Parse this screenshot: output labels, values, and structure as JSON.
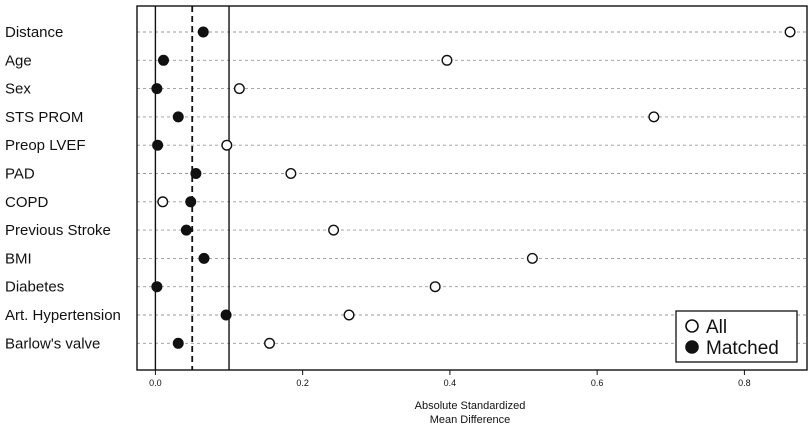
{
  "chart_data": {
    "type": "scatter",
    "title": "",
    "xlabel": [
      "Absolute Standardized",
      "Mean Difference"
    ],
    "ylabel": "",
    "xlim": [
      -0.025,
      0.885
    ],
    "x_ticks": [
      0.0,
      0.2,
      0.4,
      0.6,
      0.8
    ],
    "x_tick_labels": [
      "0.0",
      "0.2",
      "0.4",
      "0.6",
      "0.8"
    ],
    "reference_lines": [
      {
        "x": 0.0,
        "style": "solid"
      },
      {
        "x": 0.05,
        "style": "dashed"
      },
      {
        "x": 0.1,
        "style": "solid"
      }
    ],
    "grid": "horizontal dotted",
    "legend_position": "bottom-right",
    "categories": [
      "Distance",
      "Age",
      "Sex",
      "STS PROM",
      "Preop LVEF",
      "PAD",
      "COPD",
      "Previous Stroke",
      "BMI",
      "Diabetes",
      "Art. Hypertension",
      "Barlow's valve"
    ],
    "series": [
      {
        "name": "All",
        "marker": "open-circle",
        "values": [
          0.862,
          0.396,
          0.114,
          0.677,
          0.097,
          0.184,
          0.01,
          0.242,
          0.512,
          0.38,
          0.263,
          0.155
        ]
      },
      {
        "name": "Matched",
        "marker": "filled-circle",
        "values": [
          0.065,
          0.011,
          0.002,
          0.031,
          0.003,
          0.055,
          0.048,
          0.042,
          0.066,
          0.002,
          0.096,
          0.031
        ]
      }
    ]
  }
}
